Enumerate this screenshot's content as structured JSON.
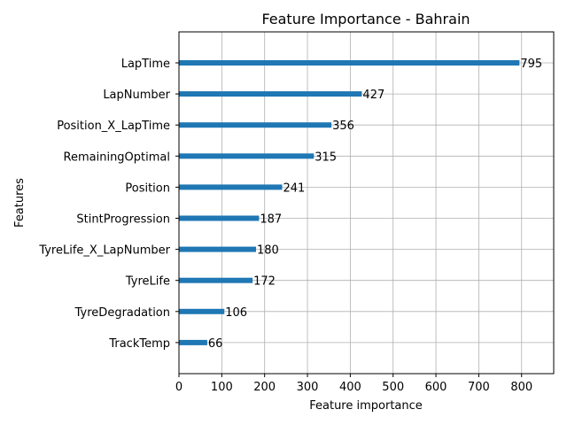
{
  "chart_data": {
    "type": "bar",
    "orientation": "horizontal",
    "title": "Feature Importance - Bahrain",
    "xlabel": "Feature importance",
    "ylabel": "Features",
    "categories": [
      "LapTime",
      "LapNumber",
      "Position_X_LapTime",
      "RemainingOptimal",
      "Position",
      "StintProgression",
      "TyreLife_X_LapNumber",
      "TyreLife",
      "TyreDegradation",
      "TrackTemp"
    ],
    "values": [
      795,
      427,
      356,
      315,
      241,
      187,
      180,
      172,
      106,
      66
    ],
    "xlim": [
      0,
      875
    ],
    "xticks": [
      0,
      100,
      200,
      300,
      400,
      500,
      600,
      700,
      800
    ],
    "xtick_labels": [
      "0",
      "100",
      "200",
      "300",
      "400",
      "500",
      "600",
      "700",
      "800"
    ],
    "grid": true,
    "bar_color": "#1f77b4"
  }
}
